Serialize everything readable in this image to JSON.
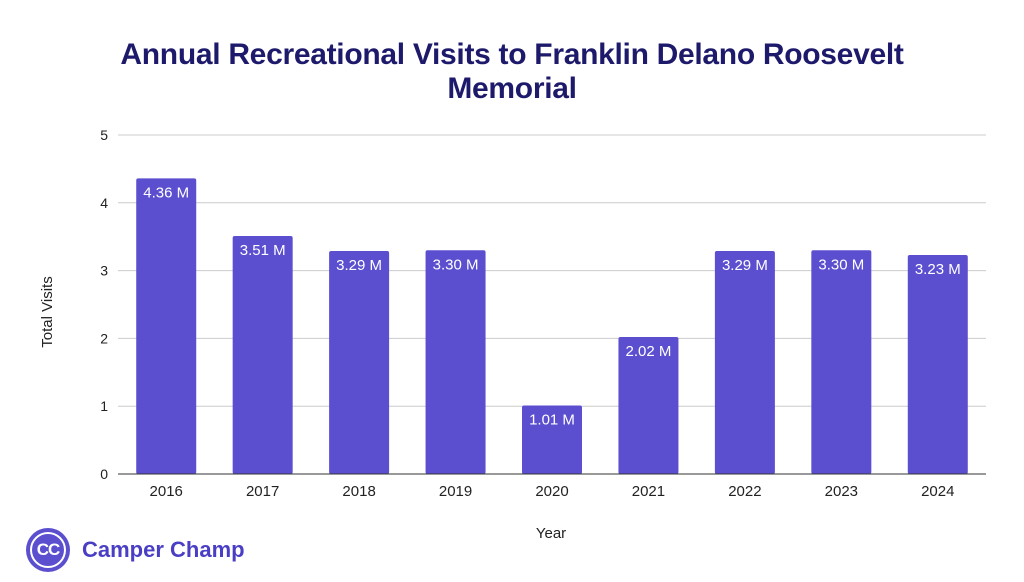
{
  "chart_data": {
    "type": "bar",
    "title_lines": [
      "Annual Recreational Visits to Franklin Delano Roosevelt",
      "Memorial"
    ],
    "xlabel": "Year",
    "ylabel": "Total Visits",
    "categories": [
      "2016",
      "2017",
      "2018",
      "2019",
      "2020",
      "2021",
      "2022",
      "2023",
      "2024"
    ],
    "values": [
      4.36,
      3.51,
      3.29,
      3.3,
      1.01,
      2.02,
      3.29,
      3.3,
      3.23
    ],
    "data_labels": [
      "4.36 M",
      "3.51 M",
      "3.29 M",
      "3.30 M",
      "1.01 M",
      "2.02 M",
      "3.29 M",
      "3.30 M",
      "3.23 M"
    ],
    "ylim": [
      0,
      5
    ],
    "yticks": [
      "0",
      "1",
      "2",
      "3",
      "4",
      "5"
    ],
    "grid": true,
    "bar_color": "#5b4fcf"
  },
  "brand": {
    "logo_text": "CC",
    "name": "Camper Champ"
  }
}
